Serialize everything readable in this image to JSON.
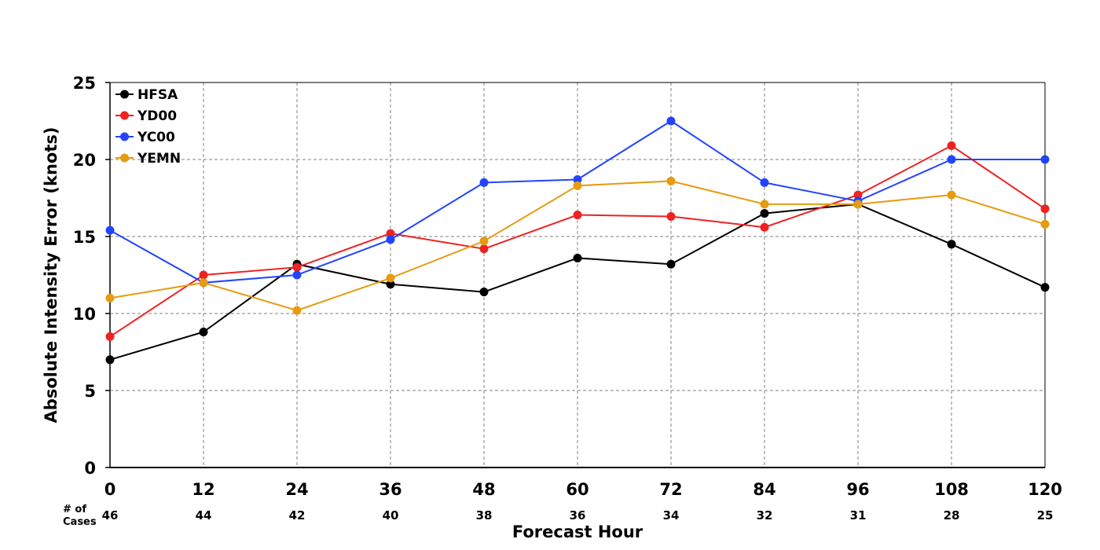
{
  "chart_data": {
    "type": "line",
    "xlabel": "Forecast Hour",
    "ylabel": "Absolute Intensity Error (knots)",
    "x": [
      0,
      12,
      24,
      36,
      48,
      60,
      72,
      84,
      96,
      108,
      120
    ],
    "xlim": [
      0,
      120
    ],
    "ylim": [
      0,
      25
    ],
    "yticks": [
      0,
      5,
      10,
      15,
      20,
      25
    ],
    "grid": true,
    "legend_position": "top-left",
    "cases_header": [
      "# of",
      "Cases"
    ],
    "cases": [
      46,
      44,
      42,
      40,
      38,
      36,
      34,
      32,
      31,
      28,
      25
    ],
    "series": [
      {
        "name": "HFSA",
        "color": "#000000",
        "values": [
          7.0,
          8.8,
          13.2,
          11.9,
          11.4,
          13.6,
          13.2,
          16.5,
          17.1,
          14.5,
          11.7
        ]
      },
      {
        "name": "YD00",
        "color": "#ee2222",
        "values": [
          8.5,
          12.5,
          13.0,
          15.2,
          14.2,
          16.4,
          16.3,
          15.6,
          17.7,
          20.9,
          16.8
        ]
      },
      {
        "name": "YC00",
        "color": "#2244ff",
        "values": [
          15.4,
          12.0,
          12.5,
          14.8,
          18.5,
          18.7,
          22.5,
          18.5,
          17.3,
          20.0,
          20.0
        ]
      },
      {
        "name": "YEMN",
        "color": "#e69b10",
        "values": [
          11.0,
          12.0,
          10.2,
          12.3,
          14.7,
          18.3,
          18.6,
          17.1,
          17.1,
          17.7,
          15.8
        ]
      }
    ]
  }
}
